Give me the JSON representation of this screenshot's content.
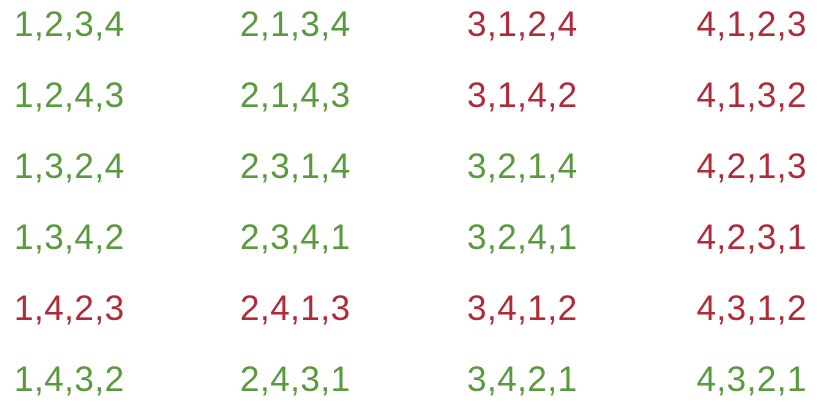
{
  "colors": {
    "green": "#5a9a3f",
    "red": "#b02a38"
  },
  "permutations": [
    [
      {
        "text": "1,2,3,4",
        "color": "green"
      },
      {
        "text": "2,1,3,4",
        "color": "green"
      },
      {
        "text": "3,1,2,4",
        "color": "red"
      },
      {
        "text": "4,1,2,3",
        "color": "red"
      }
    ],
    [
      {
        "text": "1,2,4,3",
        "color": "green"
      },
      {
        "text": "2,1,4,3",
        "color": "green"
      },
      {
        "text": "3,1,4,2",
        "color": "red"
      },
      {
        "text": "4,1,3,2",
        "color": "red"
      }
    ],
    [
      {
        "text": "1,3,2,4",
        "color": "green"
      },
      {
        "text": "2,3,1,4",
        "color": "green"
      },
      {
        "text": "3,2,1,4",
        "color": "green"
      },
      {
        "text": "4,2,1,3",
        "color": "red"
      }
    ],
    [
      {
        "text": "1,3,4,2",
        "color": "green"
      },
      {
        "text": "2,3,4,1",
        "color": "green"
      },
      {
        "text": "3,2,4,1",
        "color": "green"
      },
      {
        "text": "4,2,3,1",
        "color": "red"
      }
    ],
    [
      {
        "text": "1,4,2,3",
        "color": "red"
      },
      {
        "text": "2,4,1,3",
        "color": "red"
      },
      {
        "text": "3,4,1,2",
        "color": "red"
      },
      {
        "text": "4,3,1,2",
        "color": "red"
      }
    ],
    [
      {
        "text": "1,4,3,2",
        "color": "green"
      },
      {
        "text": "2,4,3,1",
        "color": "green"
      },
      {
        "text": "3,4,2,1",
        "color": "green"
      },
      {
        "text": "4,3,2,1",
        "color": "green"
      }
    ]
  ]
}
